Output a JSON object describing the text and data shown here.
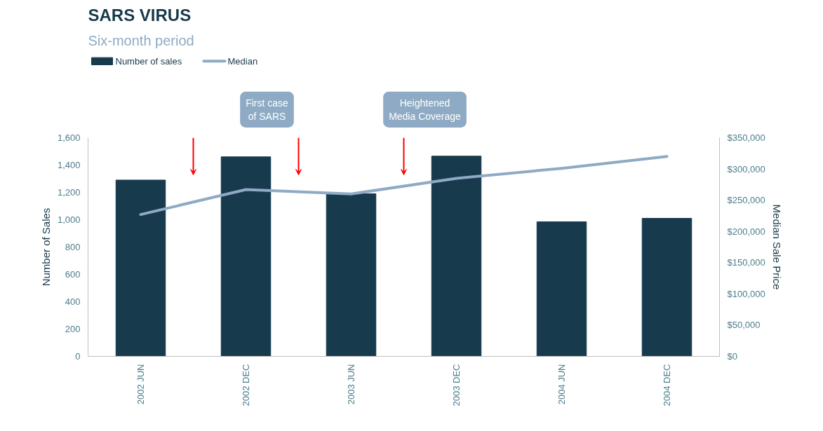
{
  "chart_data": {
    "type": "bar",
    "title": "SARS VIRUS",
    "subtitle": "Six-month period",
    "ylabel": "Number of Sales",
    "y2label": "Median Sale Price",
    "categories": [
      "2002 JUN",
      "2002 DEC",
      "2003 JUN",
      "2003 DEC",
      "2004 JUN",
      "2004 DEC"
    ],
    "series": [
      {
        "name": "Number of sales",
        "color": "#173a4d",
        "values": [
          1290,
          1460,
          1190,
          1465,
          985,
          1010
        ]
      },
      {
        "name": "Median",
        "type": "line",
        "axis": "y2",
        "color": "#8eaac4",
        "values": [
          227000,
          267000,
          260000,
          285000,
          301000,
          320000
        ]
      }
    ],
    "ylim": [
      0,
      1600
    ],
    "yticks": [
      0,
      200,
      400,
      600,
      800,
      {
        "value": 1000,
        "label": "1,000"
      },
      {
        "value": 1200,
        "label": "1,200"
      },
      {
        "value": 1400,
        "label": "1,400"
      },
      {
        "value": 1600,
        "label": "1,600"
      }
    ],
    "y2lim": [
      0,
      350000
    ],
    "y2ticks": [
      {
        "value": 0,
        "label": "$0"
      },
      {
        "value": 50000,
        "label": "$50,000"
      },
      {
        "value": 100000,
        "label": "$100,000"
      },
      {
        "value": 150000,
        "label": "$150,000"
      },
      {
        "value": 200000,
        "label": "$200,000"
      },
      {
        "value": 250000,
        "label": "$250,000"
      },
      {
        "value": 300000,
        "label": "$300,000"
      },
      {
        "value": 350000,
        "label": "$350,000"
      }
    ],
    "annotations": [
      "First case\nof SARS",
      "Heightened\nMedia Coverage"
    ],
    "legend": "top left",
    "grid": false
  }
}
